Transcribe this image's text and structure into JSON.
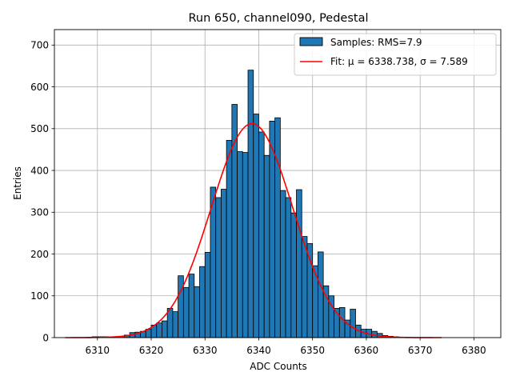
{
  "chart_data": {
    "type": "bar",
    "title": "Run 650, channel090, Pedestal",
    "xlabel": "ADC Counts",
    "ylabel": "Entries",
    "xlim": [
      6302,
      6385
    ],
    "ylim": [
      0,
      737
    ],
    "xticks": [
      6310,
      6320,
      6330,
      6340,
      6350,
      6360,
      6370,
      6380
    ],
    "yticks": [
      0,
      100,
      200,
      300,
      400,
      500,
      600,
      700
    ],
    "grid": true,
    "legend_position": "top-right",
    "bin_width": 1,
    "histogram": {
      "name": "Samples: RMS=7.9",
      "color": "#1f77b4",
      "bins": [
        [
          6308,
          1
        ],
        [
          6309,
          2
        ],
        [
          6310,
          2
        ],
        [
          6311,
          2
        ],
        [
          6312,
          1
        ],
        [
          6313,
          2
        ],
        [
          6314,
          3
        ],
        [
          6315,
          6
        ],
        [
          6316,
          12
        ],
        [
          6317,
          13
        ],
        [
          6318,
          15
        ],
        [
          6319,
          20
        ],
        [
          6320,
          30
        ],
        [
          6321,
          35
        ],
        [
          6322,
          40
        ],
        [
          6323,
          70
        ],
        [
          6324,
          62
        ],
        [
          6325,
          148
        ],
        [
          6326,
          120
        ],
        [
          6327,
          152
        ],
        [
          6328,
          122
        ],
        [
          6329,
          170
        ],
        [
          6330,
          204
        ],
        [
          6331,
          360
        ],
        [
          6332,
          335
        ],
        [
          6333,
          355
        ],
        [
          6334,
          472
        ],
        [
          6335,
          558
        ],
        [
          6336,
          445
        ],
        [
          6337,
          443
        ],
        [
          6338,
          640
        ],
        [
          6339,
          535
        ],
        [
          6340,
          492
        ],
        [
          6341,
          436
        ],
        [
          6342,
          518
        ],
        [
          6343,
          526
        ],
        [
          6344,
          352
        ],
        [
          6345,
          335
        ],
        [
          6346,
          298
        ],
        [
          6347,
          354
        ],
        [
          6348,
          242
        ],
        [
          6349,
          225
        ],
        [
          6350,
          172
        ],
        [
          6351,
          205
        ],
        [
          6352,
          124
        ],
        [
          6353,
          100
        ],
        [
          6354,
          70
        ],
        [
          6355,
          72
        ],
        [
          6356,
          42
        ],
        [
          6357,
          68
        ],
        [
          6358,
          30
        ],
        [
          6359,
          20
        ],
        [
          6360,
          20
        ],
        [
          6361,
          15
        ],
        [
          6362,
          10
        ],
        [
          6363,
          5
        ],
        [
          6364,
          3
        ],
        [
          6365,
          2
        ],
        [
          6366,
          1
        ],
        [
          6367,
          1
        ]
      ]
    },
    "fit": {
      "name": "Fit: μ = 6338.738, σ = 7.589",
      "color": "#ff0000",
      "mu": 6338.738,
      "sigma": 7.589,
      "amplitude": 512,
      "x_range": [
        6304,
        6374
      ]
    }
  }
}
